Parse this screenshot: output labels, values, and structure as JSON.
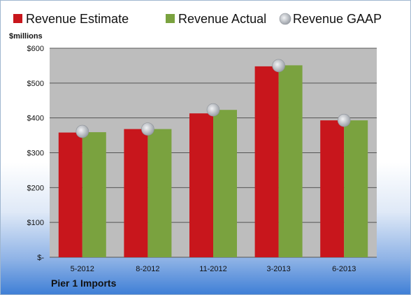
{
  "company": "Pier 1 Imports",
  "unit_label": "$millions",
  "colors": {
    "estimate": "#c8161c",
    "actual": "#7aa23f",
    "gaap": "#b9bdc3",
    "plot_bg": "#bdbdbd"
  },
  "chart_data": {
    "type": "bar",
    "title": "",
    "xlabel": "",
    "ylabel": "$millions",
    "ylim": [
      0,
      600
    ],
    "yticks": [
      0,
      100,
      200,
      300,
      400,
      500,
      600
    ],
    "ytick_labels": [
      "$-",
      "$100",
      "$200",
      "$300",
      "$400",
      "$500",
      "$600"
    ],
    "categories": [
      "5-2012",
      "8-2012",
      "11-2012",
      "3-2013",
      "6-2013"
    ],
    "legend_position": "top",
    "grid": true,
    "series": [
      {
        "name": "Revenue Estimate",
        "kind": "bar",
        "values": [
          358,
          368,
          413,
          548,
          393
        ]
      },
      {
        "name": "Revenue Actual",
        "kind": "bar",
        "values": [
          359,
          368,
          423,
          551,
          393
        ]
      },
      {
        "name": "Revenue GAAP",
        "kind": "marker",
        "values": [
          361,
          368,
          423,
          550,
          393
        ]
      }
    ]
  }
}
